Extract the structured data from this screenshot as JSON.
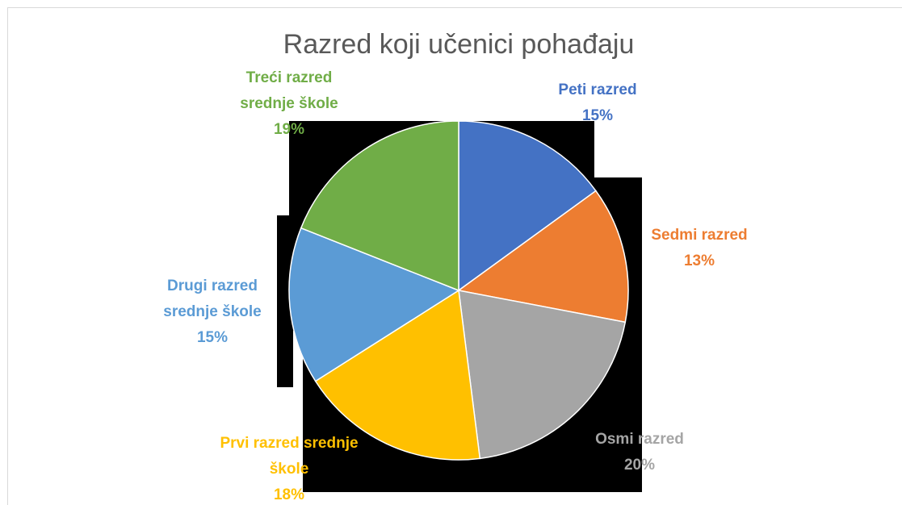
{
  "chart_data": {
    "type": "pie",
    "title": "Razred koji učenici pohađaju",
    "categories": [
      "Peti razred",
      "Sedmi razred",
      "Osmi razred",
      "Prvi razred srednje škole",
      "Drugi razred srednje škole",
      "Treći razred srednje škole"
    ],
    "values": [
      15,
      13,
      20,
      18,
      15,
      19
    ],
    "value_labels": [
      "15%",
      "13%",
      "20%",
      "18%",
      "15%",
      "19%"
    ],
    "colors": [
      "#4472c4",
      "#ed7d31",
      "#a5a5a5",
      "#ffc000",
      "#5b9bd5",
      "#70ad47"
    ]
  }
}
